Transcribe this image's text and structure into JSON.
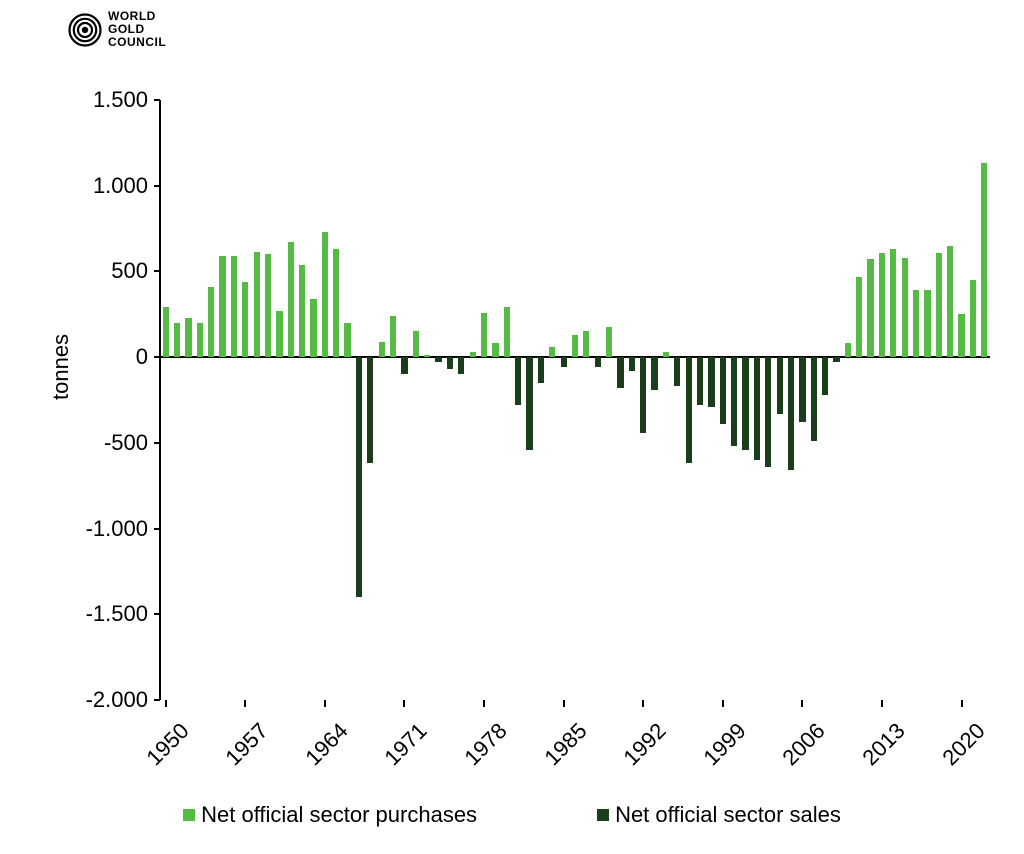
{
  "logo": {
    "line1": "WORLD",
    "line2": "GOLD",
    "line3": "COUNCIL"
  },
  "chart": {
    "type": "bar",
    "ylabel": "tonnes",
    "ylim": [
      -2000,
      1500
    ],
    "ytick_step": 500,
    "yticks": [
      -2000,
      -1500,
      -1000,
      -500,
      0,
      500,
      1000,
      1500
    ],
    "ytick_labels": [
      "-2.000",
      "-1.500",
      "-1.000",
      "-500",
      "0",
      "500",
      "1.000",
      "1.500"
    ],
    "xlim": [
      1950,
      2023
    ],
    "xtick_step": 7,
    "xticks": [
      1950,
      1957,
      1964,
      1971,
      1978,
      1985,
      1992,
      1999,
      2006,
      2013,
      2020
    ],
    "background_color": "#ffffff",
    "axis_color": "#000000",
    "axis_width": 2,
    "tick_length_y": 6,
    "tick_length_x": 7,
    "label_fontsize": 22,
    "bar_width_ratio": 0.55,
    "colors": {
      "purchases": "#55bb44",
      "sales": "#1a3d1a"
    },
    "years": [
      1950,
      1951,
      1952,
      1953,
      1954,
      1955,
      1956,
      1957,
      1958,
      1959,
      1960,
      1961,
      1962,
      1963,
      1964,
      1965,
      1966,
      1967,
      1968,
      1969,
      1970,
      1971,
      1972,
      1973,
      1974,
      1975,
      1976,
      1977,
      1978,
      1979,
      1980,
      1981,
      1982,
      1983,
      1984,
      1985,
      1986,
      1987,
      1988,
      1989,
      1990,
      1991,
      1992,
      1993,
      1994,
      1995,
      1996,
      1997,
      1998,
      1999,
      2000,
      2001,
      2002,
      2003,
      2004,
      2005,
      2006,
      2007,
      2008,
      2009,
      2010,
      2011,
      2012,
      2013,
      2014,
      2015,
      2016,
      2017,
      2018,
      2019,
      2020,
      2021,
      2022
    ],
    "values": [
      290,
      200,
      230,
      200,
      410,
      590,
      590,
      440,
      615,
      600,
      270,
      670,
      540,
      340,
      730,
      630,
      200,
      -1400,
      -620,
      90,
      240,
      -100,
      150,
      15,
      -30,
      -70,
      -100,
      30,
      255,
      80,
      290,
      -280,
      -540,
      -150,
      60,
      -60,
      130,
      150,
      -60,
      175,
      -180,
      -80,
      -440,
      -190,
      30,
      -170,
      -620,
      -280,
      -290,
      -390,
      -520,
      -540,
      -600,
      -640,
      -330,
      -660,
      -380,
      -490,
      -220,
      -30,
      80,
      470,
      570,
      610,
      630,
      580,
      390,
      390,
      610,
      650,
      250,
      450,
      1130
    ]
  },
  "legend": {
    "series": [
      {
        "label": "Net official sector purchases",
        "color": "#55bb44"
      },
      {
        "label": "Net official sector sales",
        "color": "#1a3d1a"
      }
    ]
  }
}
